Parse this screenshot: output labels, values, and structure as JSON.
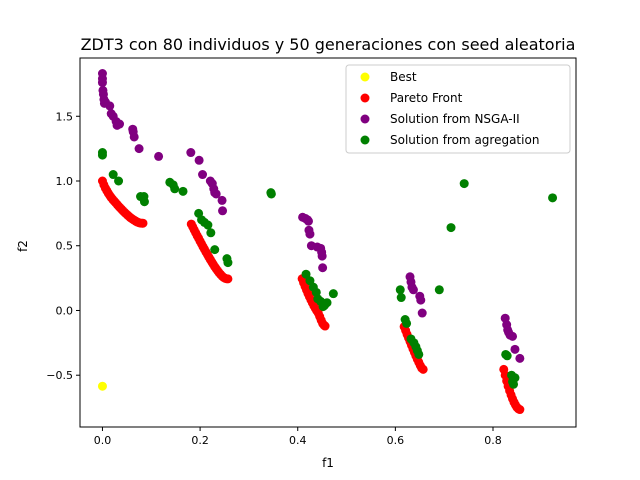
{
  "chart_data": {
    "type": "scatter",
    "title": "ZDT3 con 80 individuos y 50 generaciones con seed aleatoria",
    "xlabel": "f1",
    "ylabel": "f2",
    "xlim": [
      -0.046,
      0.97
    ],
    "ylim": [
      -0.9,
      1.95
    ],
    "xticks": [
      0.0,
      0.2,
      0.4,
      0.6,
      0.8
    ],
    "xtick_labels": [
      "0.0",
      "0.2",
      "0.4",
      "0.6",
      "0.8"
    ],
    "yticks": [
      -0.5,
      0.0,
      0.5,
      1.0,
      1.5
    ],
    "ytick_labels": [
      "−0.5",
      "0.0",
      "0.5",
      "1.0",
      "1.5"
    ],
    "grid": false,
    "legend_position": "upper-right",
    "series": [
      {
        "name": "Best",
        "color": "#ffff00",
        "points": [
          [
            0.0,
            -0.585
          ]
        ]
      },
      {
        "name": "Pareto Front",
        "color": "#ff0000",
        "points": [
          [
            0.0,
            1.0
          ],
          [
            0.003,
            0.97
          ],
          [
            0.006,
            0.945
          ],
          [
            0.009,
            0.925
          ],
          [
            0.012,
            0.905
          ],
          [
            0.015,
            0.888
          ],
          [
            0.018,
            0.872
          ],
          [
            0.021,
            0.858
          ],
          [
            0.024,
            0.845
          ],
          [
            0.027,
            0.832
          ],
          [
            0.03,
            0.819
          ],
          [
            0.033,
            0.806
          ],
          [
            0.036,
            0.794
          ],
          [
            0.039,
            0.782
          ],
          [
            0.042,
            0.77
          ],
          [
            0.045,
            0.759
          ],
          [
            0.048,
            0.748
          ],
          [
            0.051,
            0.738
          ],
          [
            0.054,
            0.728
          ],
          [
            0.057,
            0.718
          ],
          [
            0.06,
            0.71
          ],
          [
            0.063,
            0.702
          ],
          [
            0.066,
            0.695
          ],
          [
            0.069,
            0.688
          ],
          [
            0.072,
            0.682
          ],
          [
            0.075,
            0.678
          ],
          [
            0.078,
            0.675
          ],
          [
            0.081,
            0.674
          ],
          [
            0.083,
            0.674
          ],
          [
            0.182,
            0.667
          ],
          [
            0.185,
            0.645
          ],
          [
            0.188,
            0.622
          ],
          [
            0.191,
            0.6
          ],
          [
            0.194,
            0.578
          ],
          [
            0.197,
            0.557
          ],
          [
            0.2,
            0.535
          ],
          [
            0.203,
            0.514
          ],
          [
            0.206,
            0.493
          ],
          [
            0.209,
            0.472
          ],
          [
            0.212,
            0.452
          ],
          [
            0.215,
            0.432
          ],
          [
            0.218,
            0.412
          ],
          [
            0.221,
            0.393
          ],
          [
            0.224,
            0.374
          ],
          [
            0.227,
            0.356
          ],
          [
            0.23,
            0.338
          ],
          [
            0.233,
            0.322
          ],
          [
            0.236,
            0.306
          ],
          [
            0.239,
            0.291
          ],
          [
            0.242,
            0.278
          ],
          [
            0.245,
            0.266
          ],
          [
            0.248,
            0.256
          ],
          [
            0.251,
            0.249
          ],
          [
            0.254,
            0.245
          ],
          [
            0.257,
            0.244
          ],
          [
            0.409,
            0.245
          ],
          [
            0.412,
            0.215
          ],
          [
            0.415,
            0.186
          ],
          [
            0.418,
            0.158
          ],
          [
            0.421,
            0.131
          ],
          [
            0.424,
            0.106
          ],
          [
            0.427,
            0.082
          ],
          [
            0.43,
            0.059
          ],
          [
            0.433,
            0.037
          ],
          [
            0.436,
            0.017
          ],
          [
            0.439,
            -0.002
          ],
          [
            0.442,
            -0.02
          ],
          [
            0.445,
            -0.047
          ],
          [
            0.448,
            -0.075
          ],
          [
            0.451,
            -0.1
          ],
          [
            0.454,
            -0.115
          ],
          [
            0.456,
            -0.12
          ],
          [
            0.618,
            -0.125
          ],
          [
            0.621,
            -0.155
          ],
          [
            0.624,
            -0.185
          ],
          [
            0.627,
            -0.212
          ],
          [
            0.63,
            -0.24
          ],
          [
            0.633,
            -0.268
          ],
          [
            0.636,
            -0.296
          ],
          [
            0.639,
            -0.323
          ],
          [
            0.642,
            -0.35
          ],
          [
            0.645,
            -0.376
          ],
          [
            0.648,
            -0.4
          ],
          [
            0.651,
            -0.425
          ],
          [
            0.654,
            -0.445
          ],
          [
            0.657,
            -0.455
          ],
          [
            0.822,
            -0.455
          ],
          [
            0.825,
            -0.5
          ],
          [
            0.828,
            -0.545
          ],
          [
            0.831,
            -0.585
          ],
          [
            0.834,
            -0.62
          ],
          [
            0.837,
            -0.652
          ],
          [
            0.84,
            -0.682
          ],
          [
            0.843,
            -0.708
          ],
          [
            0.846,
            -0.73
          ],
          [
            0.849,
            -0.748
          ],
          [
            0.852,
            -0.76
          ],
          [
            0.855,
            -0.765
          ]
        ]
      },
      {
        "name": "Solution from NSGA-II",
        "color": "#800080",
        "points": [
          [
            0.0,
            1.83
          ],
          [
            0.0,
            1.79
          ],
          [
            0.0,
            1.76
          ],
          [
            0.001,
            1.7
          ],
          [
            0.002,
            1.67
          ],
          [
            0.003,
            1.63
          ],
          [
            0.004,
            1.6
          ],
          [
            0.006,
            1.61
          ],
          [
            0.015,
            1.58
          ],
          [
            0.018,
            1.52
          ],
          [
            0.022,
            1.5
          ],
          [
            0.028,
            1.46
          ],
          [
            0.03,
            1.43
          ],
          [
            0.035,
            1.44
          ],
          [
            0.062,
            1.4
          ],
          [
            0.063,
            1.38
          ],
          [
            0.065,
            1.34
          ],
          [
            0.075,
            1.25
          ],
          [
            0.115,
            1.19
          ],
          [
            0.181,
            1.22
          ],
          [
            0.198,
            1.16
          ],
          [
            0.205,
            1.05
          ],
          [
            0.221,
            1.0
          ],
          [
            0.225,
            0.98
          ],
          [
            0.228,
            0.94
          ],
          [
            0.23,
            0.91
          ],
          [
            0.233,
            0.9
          ],
          [
            0.245,
            0.85
          ],
          [
            0.246,
            0.77
          ],
          [
            0.41,
            0.72
          ],
          [
            0.416,
            0.71
          ],
          [
            0.42,
            0.7
          ],
          [
            0.422,
            0.69
          ],
          [
            0.423,
            0.62
          ],
          [
            0.425,
            0.59
          ],
          [
            0.428,
            0.5
          ],
          [
            0.44,
            0.49
          ],
          [
            0.447,
            0.48
          ],
          [
            0.449,
            0.45
          ],
          [
            0.45,
            0.42
          ],
          [
            0.451,
            0.33
          ],
          [
            0.63,
            0.26
          ],
          [
            0.632,
            0.22
          ],
          [
            0.634,
            0.18
          ],
          [
            0.637,
            0.16
          ],
          [
            0.65,
            0.11
          ],
          [
            0.652,
            0.08
          ],
          [
            0.655,
            -0.02
          ],
          [
            0.825,
            -0.06
          ],
          [
            0.828,
            -0.11
          ],
          [
            0.83,
            -0.15
          ],
          [
            0.832,
            -0.17
          ],
          [
            0.835,
            -0.19
          ],
          [
            0.84,
            -0.2
          ],
          [
            0.845,
            -0.3
          ],
          [
            0.855,
            -0.37
          ]
        ]
      },
      {
        "name": "Solution from agregation",
        "color": "#008000",
        "points": [
          [
            0.0,
            1.22
          ],
          [
            0.0,
            1.2
          ],
          [
            0.022,
            1.05
          ],
          [
            0.033,
            1.0
          ],
          [
            0.078,
            0.88
          ],
          [
            0.085,
            0.88
          ],
          [
            0.086,
            0.84
          ],
          [
            0.138,
            0.99
          ],
          [
            0.145,
            0.97
          ],
          [
            0.148,
            0.94
          ],
          [
            0.165,
            0.92
          ],
          [
            0.197,
            0.75
          ],
          [
            0.203,
            0.7
          ],
          [
            0.209,
            0.68
          ],
          [
            0.216,
            0.66
          ],
          [
            0.222,
            0.6
          ],
          [
            0.23,
            0.47
          ],
          [
            0.255,
            0.4
          ],
          [
            0.257,
            0.37
          ],
          [
            0.345,
            0.91
          ],
          [
            0.346,
            0.9
          ],
          [
            0.417,
            0.28
          ],
          [
            0.425,
            0.23
          ],
          [
            0.432,
            0.18
          ],
          [
            0.438,
            0.14
          ],
          [
            0.441,
            0.09
          ],
          [
            0.447,
            0.07
          ],
          [
            0.452,
            0.03
          ],
          [
            0.455,
            0.04
          ],
          [
            0.46,
            0.06
          ],
          [
            0.473,
            0.13
          ],
          [
            0.61,
            0.16
          ],
          [
            0.612,
            0.1
          ],
          [
            0.62,
            -0.07
          ],
          [
            0.623,
            -0.1
          ],
          [
            0.632,
            -0.22
          ],
          [
            0.638,
            -0.25
          ],
          [
            0.642,
            -0.28
          ],
          [
            0.645,
            -0.31
          ],
          [
            0.648,
            -0.34
          ],
          [
            0.69,
            0.16
          ],
          [
            0.714,
            0.64
          ],
          [
            0.741,
            0.98
          ],
          [
            0.826,
            -0.34
          ],
          [
            0.829,
            -0.35
          ],
          [
            0.838,
            -0.5
          ],
          [
            0.84,
            -0.55
          ],
          [
            0.842,
            -0.57
          ],
          [
            0.845,
            -0.52
          ],
          [
            0.922,
            0.87
          ]
        ]
      }
    ]
  }
}
